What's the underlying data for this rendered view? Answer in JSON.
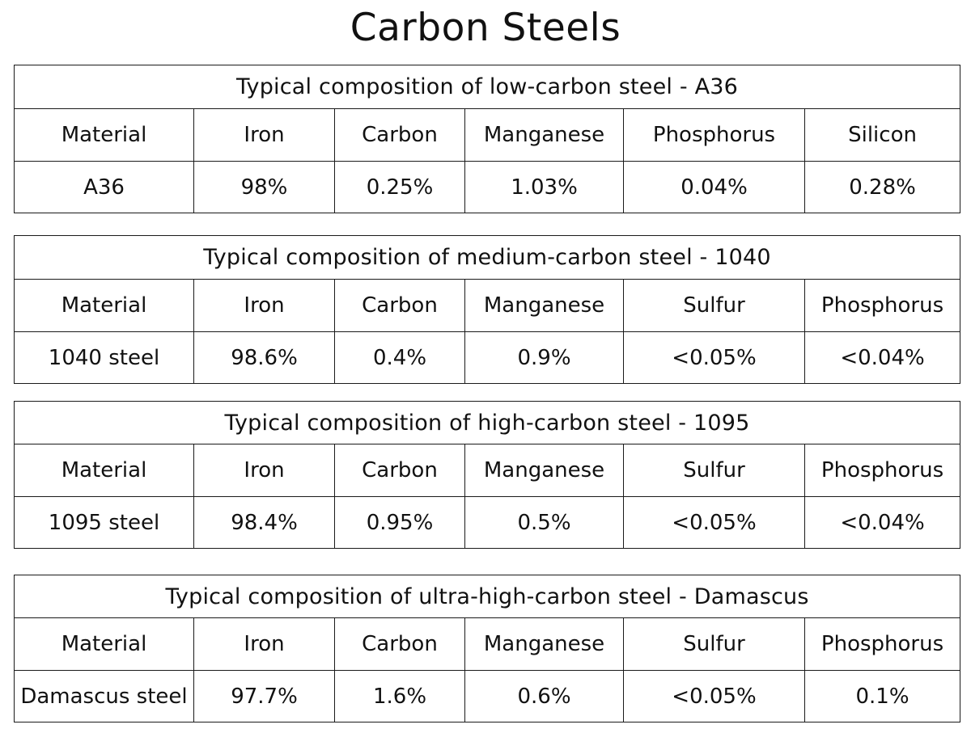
{
  "title": "Carbon Steels",
  "tables": [
    {
      "caption": "Typical composition of low-carbon steel - A36",
      "headers": [
        "Material",
        "Iron",
        "Carbon",
        "Manganese",
        "Phosphorus",
        "Silicon"
      ],
      "row": [
        "A36",
        "98%",
        "0.25%",
        "1.03%",
        "0.04%",
        "0.28%"
      ]
    },
    {
      "caption": "Typical composition of medium-carbon steel - 1040",
      "headers": [
        "Material",
        "Iron",
        "Carbon",
        "Manganese",
        "Sulfur",
        "Phosphorus"
      ],
      "row": [
        "1040 steel",
        "98.6%",
        "0.4%",
        "0.9%",
        "<0.05%",
        "<0.04%"
      ]
    },
    {
      "caption": "Typical composition of high-carbon steel - 1095",
      "headers": [
        "Material",
        "Iron",
        "Carbon",
        "Manganese",
        "Sulfur",
        "Phosphorus"
      ],
      "row": [
        "1095 steel",
        "98.4%",
        "0.95%",
        "0.5%",
        "<0.05%",
        "<0.04%"
      ]
    },
    {
      "caption": "Typical composition of ultra-high-carbon steel - Damascus",
      "headers": [
        "Material",
        "Iron",
        "Carbon",
        "Manganese",
        "Sulfur",
        "Phosphorus"
      ],
      "row": [
        "Damascus steel",
        "97.7%",
        "1.6%",
        "0.6%",
        "<0.05%",
        "0.1%"
      ]
    }
  ]
}
